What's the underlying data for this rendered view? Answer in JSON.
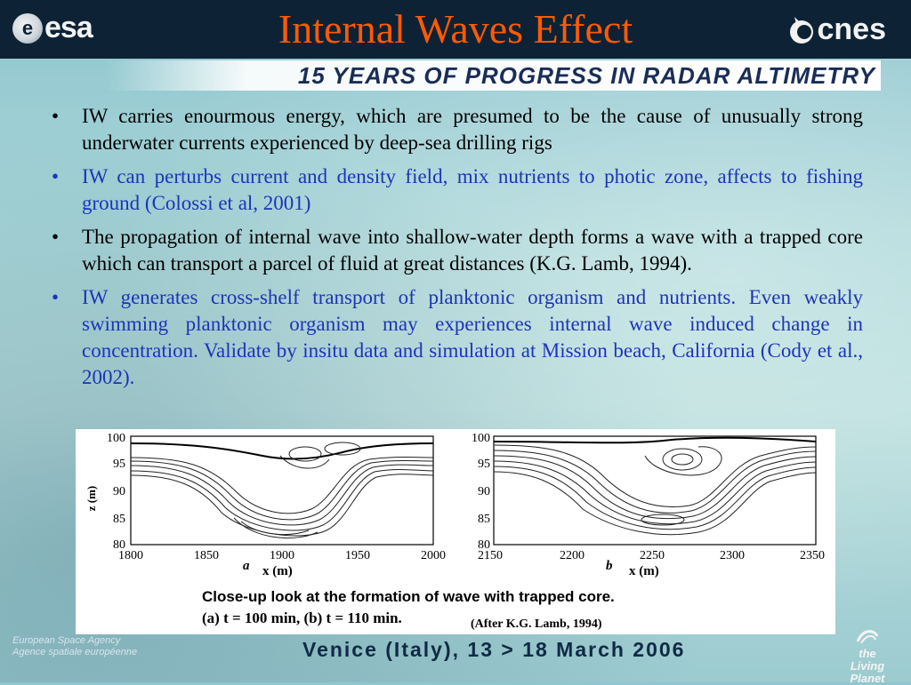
{
  "header": {
    "title": "Internal Waves Effect",
    "left_logo_text": "esa",
    "right_logo_text": "cnes"
  },
  "banner": {
    "text": "15 YEARS OF PROGRESS IN RADAR ALTIMETRY"
  },
  "bullets": [
    {
      "text": "IW carries enourmous energy, which are presumed to be the cause of unusually strong underwater currents experienced by deep-sea drilling rigs",
      "color": "#000000"
    },
    {
      "text": "IW can perturbs current and density field, mix nutrients to photic zone, affects to fishing ground (Colossi et al, 2001)",
      "color": "#1c34b8"
    },
    {
      "text": "The propagation of internal wave into shallow-water depth forms a wave with a trapped core which can transport a parcel of fluid at great distances (K.G. Lamb, 1994).",
      "color": "#000000"
    },
    {
      "text": "IW generates cross-shelf transport of planktonic organism and nutrients. Even weakly swimming planktonic organism may experiences internal wave induced change in concentration. Validate by insitu data and  simulation at Mission beach, California (Cody et al., 2002).",
      "color": "#1c34b8"
    }
  ],
  "bullet_glyph": "•",
  "figure": {
    "panel_a": {
      "label": "a",
      "xlabel": "x (m)",
      "ylabel": "z (m)",
      "yticks": [
        "100",
        "95",
        "90",
        "85",
        "80"
      ],
      "xticks": [
        "1800",
        "1850",
        "1900",
        "1950",
        "2000"
      ]
    },
    "panel_b": {
      "label": "b",
      "xlabel": "x (m)",
      "yticks": [
        "100",
        "95",
        "90",
        "85",
        "80"
      ],
      "xticks": [
        "2150",
        "2200",
        "2250",
        "2300",
        "2350"
      ]
    },
    "caption_line1": "Close-up look at the formation of wave with trapped core.",
    "caption_line2": "(a) t = 100 min,  (b)  t = 110 min.",
    "credit": "(After K.G. Lamb, 1994)"
  },
  "footer": {
    "agency_line1": "European Space Agency",
    "agency_line2": "Agence spatiale européenne",
    "event": "Venice (Italy), 13 > 18 March 2006",
    "right_logo_line1": "the",
    "right_logo_line2": "Living Planet"
  },
  "colors": {
    "title": "#ff5a00",
    "header_bg": "#0d2235",
    "banner_text": "#1a2d55",
    "blue_text": "#1c34b8"
  }
}
